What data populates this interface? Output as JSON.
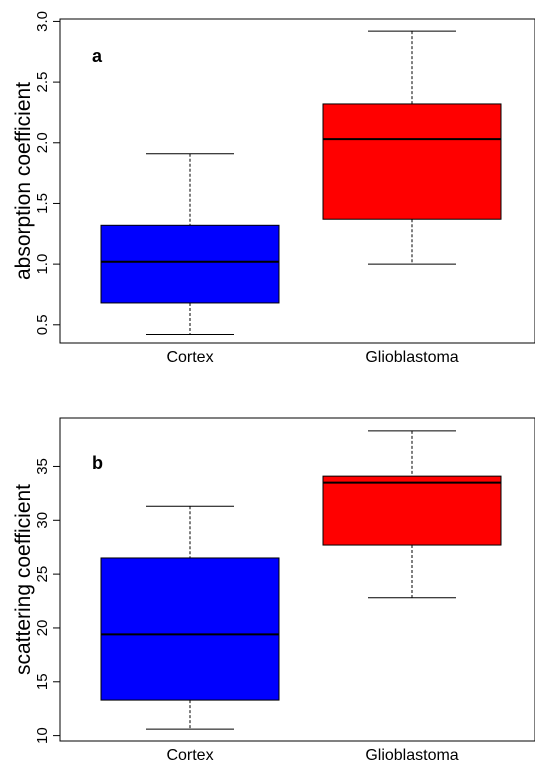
{
  "colors": {
    "cortex": "#0000ff",
    "glioblastoma": "#ff0000",
    "axis": "#000000",
    "whisker": "#000000"
  },
  "chart_data": [
    {
      "type": "box",
      "panel_label": "a",
      "title": "",
      "xlabel": "",
      "ylabel": "absorption coefficient",
      "categories": [
        "Cortex",
        "Glioblastoma"
      ],
      "boxes": [
        {
          "category": "Cortex",
          "min": 0.42,
          "q1": 0.68,
          "median": 1.02,
          "q3": 1.32,
          "max": 1.91,
          "color": "#0000ff"
        },
        {
          "category": "Glioblastoma",
          "min": 1.0,
          "q1": 1.37,
          "median": 2.03,
          "q3": 2.32,
          "max": 2.92,
          "color": "#ff0000"
        }
      ],
      "ylim": [
        0.35,
        3.02
      ],
      "yticks": [
        0.5,
        1.0,
        1.5,
        2.0,
        2.5,
        3.0
      ],
      "ytick_labels": [
        "0.5",
        "1.0",
        "1.5",
        "2.0",
        "2.5",
        "3.0"
      ],
      "grid": false,
      "legend": "none"
    },
    {
      "type": "box",
      "panel_label": "b",
      "title": "",
      "xlabel": "",
      "ylabel": "scattering coefficient",
      "categories": [
        "Cortex",
        "Glioblastoma"
      ],
      "boxes": [
        {
          "category": "Cortex",
          "min": 10.6,
          "q1": 13.3,
          "median": 19.4,
          "q3": 26.5,
          "max": 31.3,
          "color": "#0000ff"
        },
        {
          "category": "Glioblastoma",
          "min": 22.8,
          "q1": 27.7,
          "median": 33.5,
          "q3": 34.1,
          "max": 38.3,
          "color": "#ff0000"
        }
      ],
      "ylim": [
        9.5,
        39.5
      ],
      "yticks": [
        10,
        15,
        20,
        25,
        30,
        35
      ],
      "ytick_labels": [
        "10",
        "15",
        "20",
        "25",
        "30",
        "35"
      ],
      "grid": false,
      "legend": "none"
    }
  ]
}
